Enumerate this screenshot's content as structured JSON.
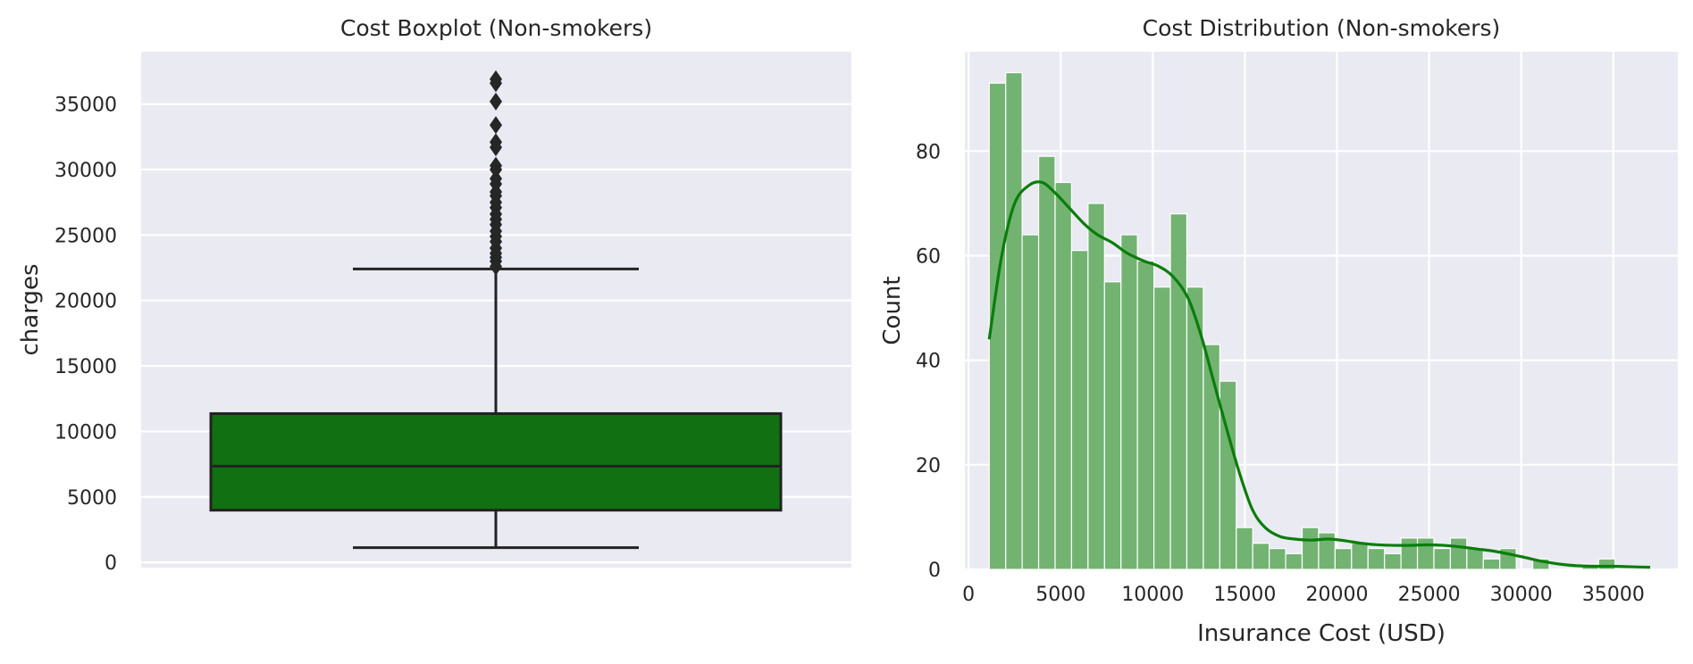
{
  "chart_data": [
    {
      "type": "boxplot",
      "title": "Cost Boxplot (Non-smokers)",
      "xlabel": "",
      "ylabel": "charges",
      "ylim": [
        -400,
        39000
      ],
      "yticks": [
        0,
        5000,
        10000,
        15000,
        20000,
        25000,
        30000,
        35000
      ],
      "grid": true,
      "box": {
        "color": "#117011",
        "whisker_low": 1122,
        "q1": 3986,
        "median": 7345,
        "q3": 11363,
        "whisker_high": 22412
      },
      "outliers": [
        22600,
        23000,
        23300,
        23600,
        24000,
        24500,
        24900,
        25300,
        25800,
        26200,
        26600,
        27100,
        27500,
        28000,
        28300,
        28900,
        29300,
        30000,
        30300,
        31700,
        32100,
        33400,
        35200,
        36600,
        36900
      ]
    },
    {
      "type": "histogram",
      "title": "Cost Distribution (Non-smokers)",
      "xlabel": "Insurance Cost (USD)",
      "ylabel": "Count",
      "xlim": [
        -200,
        38500
      ],
      "ylim": [
        0,
        99
      ],
      "xticks": [
        0,
        5000,
        10000,
        15000,
        20000,
        25000,
        30000,
        35000
      ],
      "yticks": [
        0,
        20,
        40,
        60,
        80
      ],
      "grid": true,
      "bar_color": "#72b372",
      "kde_color": "#0a7d0a",
      "bin_start": 1122,
      "bin_width": 894,
      "counts": [
        93,
        95,
        64,
        79,
        74,
        61,
        70,
        55,
        64,
        59,
        54,
        68,
        54,
        43,
        36,
        8,
        5,
        4,
        3,
        8,
        7,
        4,
        5,
        4,
        3,
        6,
        6,
        4,
        6,
        4,
        2,
        4,
        0,
        2,
        0,
        0,
        1,
        2
      ],
      "kde": {
        "x": [
          1122,
          1800,
          2500,
          3300,
          4000,
          4700,
          5500,
          6300,
          7000,
          7800,
          8600,
          9500,
          10300,
          11100,
          11900,
          12600,
          13300,
          14000,
          14700,
          15400,
          16100,
          16900,
          17700,
          18600,
          19500,
          20400,
          21300,
          22200,
          23100,
          24000,
          24900,
          25800,
          26700,
          27600,
          28500,
          29400,
          30300,
          31200,
          32100,
          33000,
          34000,
          35000,
          36000,
          37000
        ],
        "y": [
          44,
          60,
          70,
          73.5,
          74,
          72,
          69,
          66,
          64,
          62.5,
          60.5,
          59,
          58,
          56,
          52,
          45,
          36,
          27,
          18.5,
          11.5,
          8,
          6.3,
          5.8,
          5.6,
          5.8,
          5.5,
          5,
          4.7,
          4.6,
          4.6,
          4.7,
          4.6,
          4.3,
          3.9,
          3.5,
          2.9,
          2.2,
          1.5,
          1,
          0.7,
          0.6,
          0.6,
          0.5,
          0.4
        ]
      }
    }
  ]
}
